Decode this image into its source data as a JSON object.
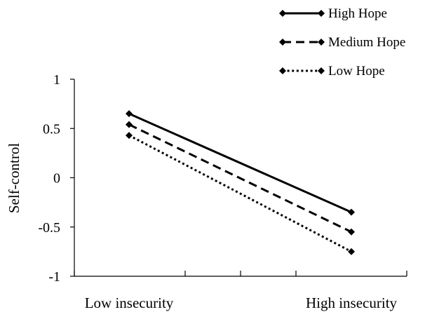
{
  "chart_data": {
    "type": "line",
    "categories": [
      "Low insecurity",
      "High insecurity"
    ],
    "ylabel": "Self-control",
    "xlabel": "",
    "ylim": [
      -1,
      1
    ],
    "yticks": [
      1,
      0.5,
      0,
      -0.5,
      -1
    ],
    "ytick_labels": [
      "1",
      "0.5",
      "0",
      "-0.5",
      "-1"
    ],
    "legend_position": "top-right",
    "grid": false,
    "series": [
      {
        "name": "High Hope",
        "values": [
          0.65,
          -0.35
        ],
        "dash": "solid",
        "color": "#000000"
      },
      {
        "name": "Medium Hope",
        "values": [
          0.54,
          -0.55
        ],
        "dash": "dashed",
        "color": "#000000"
      },
      {
        "name": "Low Hope",
        "values": [
          0.43,
          -0.75
        ],
        "dash": "dotted",
        "color": "#000000"
      }
    ]
  }
}
